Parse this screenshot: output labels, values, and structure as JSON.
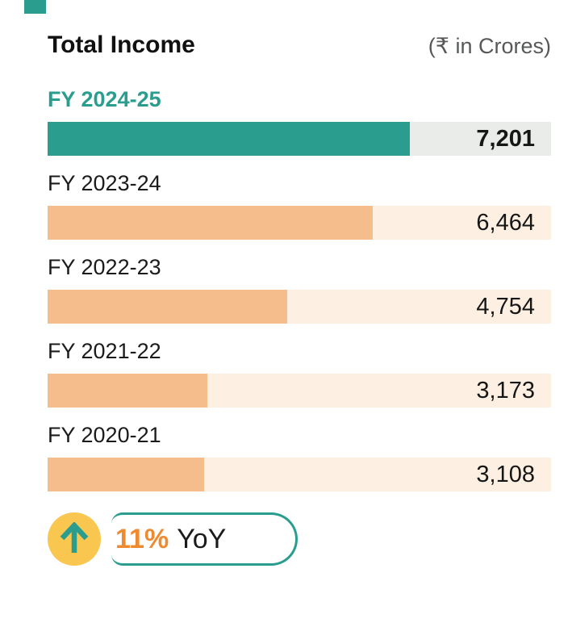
{
  "header": {
    "title": "Total Income",
    "unit": "(₹ in Crores)"
  },
  "chart_data": {
    "type": "bar",
    "orientation": "horizontal",
    "title": "Total Income",
    "unit_label": "₹ in Crores",
    "scale_max": 10000,
    "grid": false,
    "categories": [
      "FY 2024-25",
      "FY 2023-24",
      "FY 2022-23",
      "FY 2021-22",
      "FY 2020-21"
    ],
    "values": [
      7201,
      6464,
      4754,
      3173,
      3108
    ],
    "value_labels": [
      "7,201",
      "6,464",
      "4,754",
      "3,173",
      "3,108"
    ],
    "highlight_index": 0,
    "colors": {
      "highlight_fill": "#2a9d8f",
      "highlight_track": "#e9ece9",
      "highlight_label": "#2a9d8f",
      "fill": "#f6bd8c",
      "track": "#fdf0e2",
      "label": "#1b1b1b"
    }
  },
  "badge": {
    "percent": "11%",
    "suffix": "YoY",
    "direction": "up",
    "icon": "arrow-up-icon",
    "circle_color": "#f9c74f",
    "arrow_color": "#2a9d8f",
    "percent_color": "#ee8b30",
    "border_color": "#2a9d8f"
  },
  "brand_mark_color": "#2a9d8f"
}
